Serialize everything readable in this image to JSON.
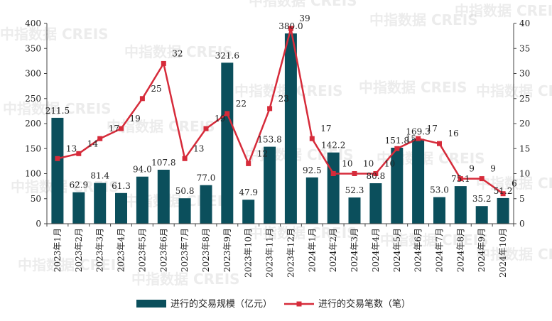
{
  "watermark": "中指数据 CREIS",
  "colors": {
    "bar": "#0b4f5c",
    "line": "#d62b3a",
    "axis": "#444444"
  },
  "legend": {
    "bar_label": "进行的交易规模（亿元）",
    "line_label": "进行的交易笔数（笔）"
  },
  "chart_data": {
    "type": "bar",
    "categories": [
      "2023年1月",
      "2023年2月",
      "2023年3月",
      "2023年4月",
      "2023年5月",
      "2023年6月",
      "2023年7月",
      "2023年8月",
      "2023年9月",
      "2023年10月",
      "2023年11月",
      "2023年12月",
      "2024年1月",
      "2024年2月",
      "2024年3月",
      "2024年4月",
      "2024年5月",
      "2024年6月",
      "2024年7月",
      "2024年8月",
      "2024年9月",
      "2024年10月"
    ],
    "series": [
      {
        "name": "进行的交易规模（亿元）",
        "type": "bar",
        "axis": "left",
        "values": [
          211.5,
          62.9,
          81.4,
          61.3,
          94.0,
          107.8,
          50.8,
          77.0,
          321.6,
          47.9,
          153.8,
          380.0,
          92.5,
          142.2,
          52.3,
          80.8,
          151.8,
          169.3,
          53.0,
          75.1,
          35.2,
          51.2
        ],
        "labels": [
          "211.5",
          "62.9",
          "81.4",
          "61.3",
          "94.0",
          "107.8",
          "50.8",
          "77.0",
          "321.6",
          "47.9",
          "153.8",
          "380.0",
          "92.5",
          "142.2",
          "52.3",
          "80.8",
          "151.8",
          "169.3",
          "53.0",
          "75.1",
          "35.2",
          "51.2"
        ]
      },
      {
        "name": "进行的交易笔数（笔）",
        "type": "line",
        "axis": "right",
        "values": [
          13,
          14,
          17,
          19,
          25,
          32,
          13,
          19,
          22,
          12,
          23,
          39,
          17,
          10,
          10,
          10,
          15,
          17,
          16,
          9,
          9,
          6
        ],
        "labels": [
          "13",
          "14",
          "17",
          "19",
          "25",
          "32",
          "13",
          "19",
          "22",
          "12",
          "23",
          "39",
          "17",
          "10",
          "10",
          "10",
          "15",
          "17",
          "16",
          "9",
          "9",
          "6"
        ]
      }
    ],
    "y_left": {
      "min": 0,
      "max": 400,
      "ticks": [
        "0",
        "50",
        "100",
        "150",
        "200",
        "250",
        "300",
        "350",
        "400"
      ]
    },
    "y_right": {
      "min": 0,
      "max": 40,
      "ticks": [
        "0",
        "5",
        "10",
        "15",
        "20",
        "25",
        "30",
        "35",
        "40"
      ]
    },
    "grid": false,
    "legend_position": "bottom"
  }
}
